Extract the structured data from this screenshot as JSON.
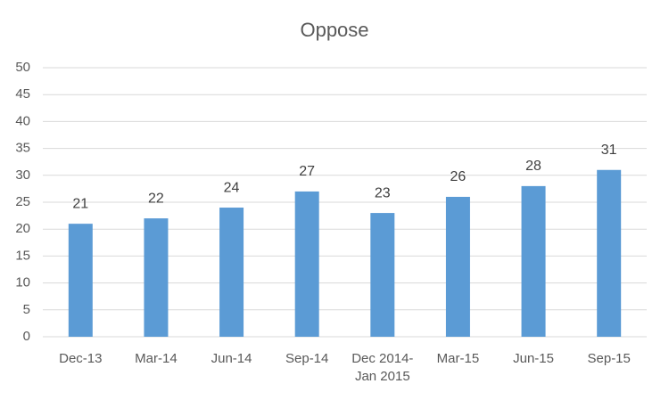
{
  "chart_data": {
    "type": "bar",
    "title": "Oppose",
    "categories": [
      "Dec-13",
      "Mar-14",
      "Jun-14",
      "Sep-14",
      "Dec 2014-Jan 2015",
      "Mar-15",
      "Jun-15",
      "Sep-15"
    ],
    "values": [
      21,
      22,
      24,
      27,
      23,
      26,
      28,
      31
    ],
    "color": "#5b9bd5",
    "ylim": [
      0,
      50
    ],
    "yticks": [
      0,
      5,
      10,
      15,
      20,
      25,
      30,
      35,
      40,
      45,
      50
    ],
    "grid": true
  }
}
